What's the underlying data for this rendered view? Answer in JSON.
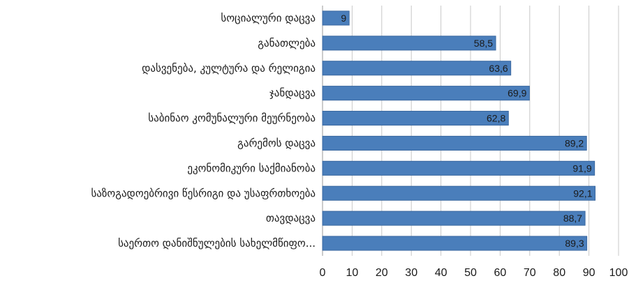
{
  "chart_data": {
    "type": "bar",
    "orientation": "horizontal",
    "categories": [
      "სოციალური დაცვა",
      "განათლება",
      "დასვენება, კულტურა და რელიგია",
      "ჯანდაცვა",
      "საბინაო კომუნალური მეურნეობა",
      "გარემოს დაცვა",
      "ეკონომიკური საქმიანობა",
      "საზოგადოებრივი წესრიგი და უსაფრთხოება",
      "თავდაცვა",
      "საერთო დანიშნულების სახელმწიფო..."
    ],
    "values": [
      9,
      58.5,
      63.6,
      69.9,
      62.8,
      89.2,
      91.9,
      92.1,
      88.7,
      89.3
    ],
    "value_labels": [
      "9",
      "58,5",
      "63,6",
      "69,9",
      "62,8",
      "89,2",
      "91,9",
      "92,1",
      "88,7",
      "89,3"
    ],
    "xticks": [
      "0",
      "10",
      "20",
      "30",
      "40",
      "50",
      "60",
      "70",
      "80",
      "90",
      "100"
    ],
    "xlim": [
      0,
      100
    ],
    "grid": true,
    "colors": {
      "bar": "#4a7ebb",
      "bar_edge": "#3a68a0"
    }
  }
}
